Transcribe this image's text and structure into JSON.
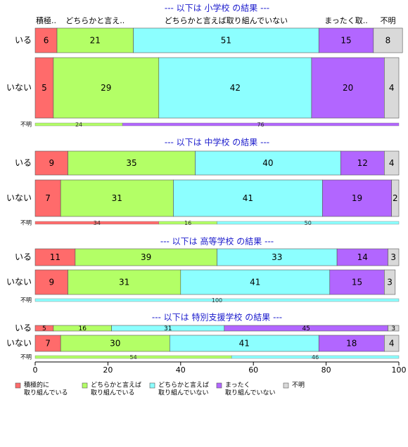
{
  "chart_data": {
    "type": "bar",
    "orientation": "horizontal-stacked-percent",
    "xlim": [
      0,
      100
    ],
    "x_ticks": [
      0,
      20,
      40,
      60,
      80,
      100
    ],
    "grid": false,
    "legend_placement": "bottom",
    "categories": [
      {
        "label": "積極的に\n取り組んでいる",
        "color": "#ff6b6b"
      },
      {
        "label": "どちらかと言えば\n取り組んでいる",
        "color": "#b3ff66"
      },
      {
        "label": "どちらかと言えば\n取り組んでいない",
        "color": "#8cffff"
      },
      {
        "label": "まったく\n取り組んでいない",
        "color": "#b266ff"
      },
      {
        "label": "不明",
        "color": "#d9d9d9"
      }
    ],
    "top_labels": [
      "積極..",
      "どちらかと言え..",
      "どちらかと言えば取り組んでいない",
      "まったく取..",
      "不明"
    ],
    "groups": [
      {
        "title": "--- 以下は 小学校 の結果 ---",
        "rows": [
          {
            "label": "いる",
            "values": [
              6,
              21,
              51,
              15,
              8
            ]
          },
          {
            "label": "いない",
            "values": [
              5,
              29,
              42,
              20,
              4
            ]
          }
        ],
        "unknown": {
          "label": "不明",
          "values": [
            0,
            24,
            0,
            76,
            0
          ]
        }
      },
      {
        "title": "--- 以下は 中学校 の結果 ---",
        "rows": [
          {
            "label": "いる",
            "values": [
              9,
              35,
              40,
              12,
              4
            ]
          },
          {
            "label": "いない",
            "values": [
              7,
              31,
              41,
              19,
              2
            ]
          }
        ],
        "unknown": {
          "label": "不明",
          "values": [
            34,
            16,
            50,
            0,
            0
          ]
        }
      },
      {
        "title": "--- 以下は 高等学校 の結果 ---",
        "rows": [
          {
            "label": "いる",
            "values": [
              11,
              39,
              33,
              14,
              3
            ]
          },
          {
            "label": "いない",
            "values": [
              9,
              31,
              41,
              15,
              3
            ]
          }
        ],
        "unknown": {
          "label": "不明",
          "values": [
            0,
            0,
            100,
            0,
            0
          ]
        }
      },
      {
        "title": "--- 以下は 特別支援学校 の結果 ---",
        "rows": [
          {
            "label": "いる",
            "values": [
              5,
              16,
              31,
              45,
              3
            ]
          },
          {
            "label": "いない",
            "values": [
              7,
              30,
              41,
              18,
              4
            ]
          }
        ],
        "unknown": {
          "label": "不明",
          "values": [
            0,
            54,
            46,
            0,
            0
          ]
        }
      }
    ]
  }
}
